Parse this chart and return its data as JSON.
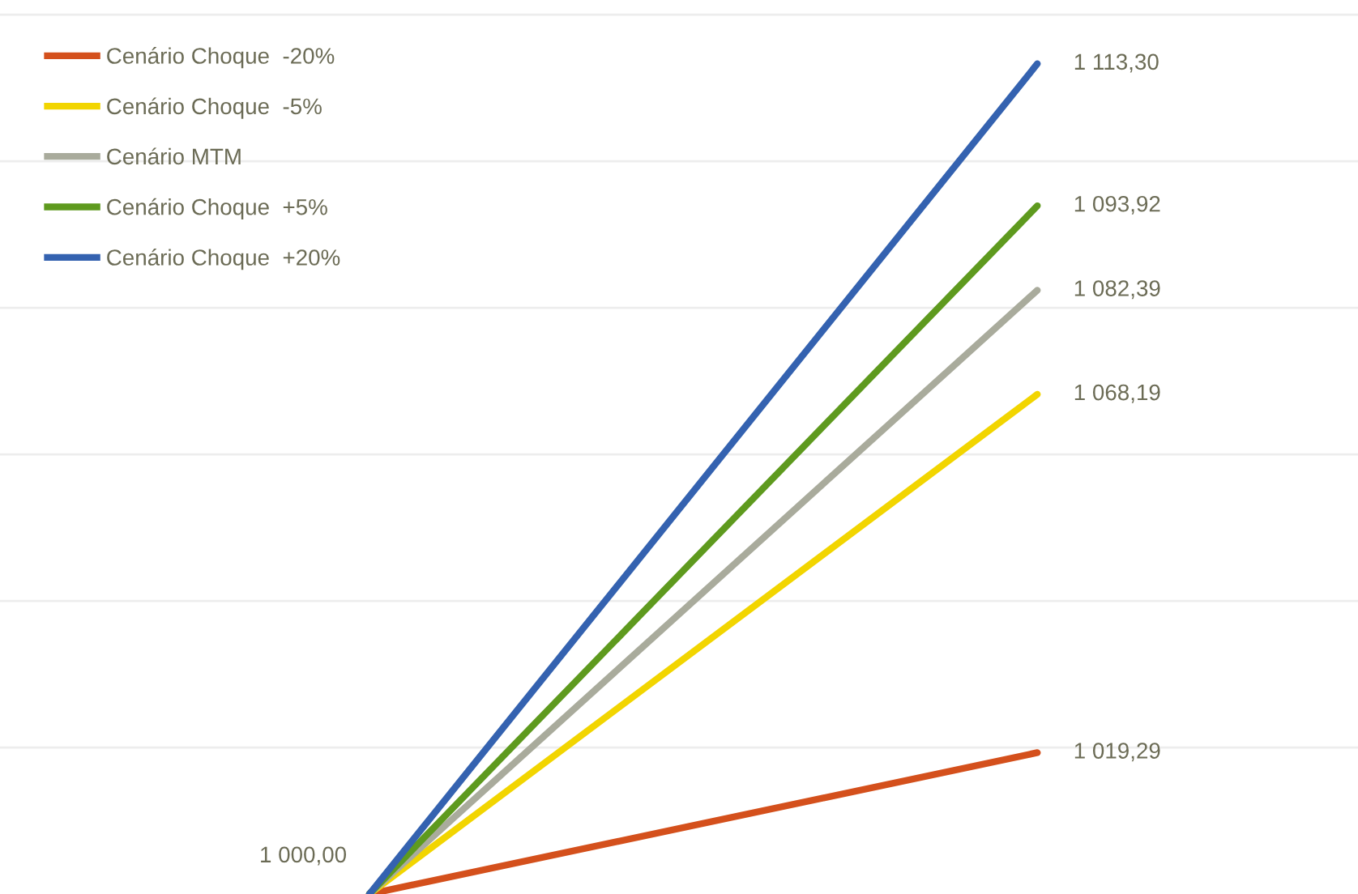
{
  "chart_data": {
    "type": "line",
    "categories": [
      null,
      null
    ],
    "series": [
      {
        "name": "Cenário Choque  -20%",
        "color": "#d4501c",
        "values": [
          1000,
          1019.29
        ],
        "value_labels": [
          null,
          "1 019,29"
        ]
      },
      {
        "name": "Cenário Choque  -5%",
        "color": "#f2d500",
        "values": [
          1000,
          1068.19
        ],
        "value_labels": [
          null,
          "1 068,19"
        ]
      },
      {
        "name": "Cenário MTM",
        "color": "#a9ab9c",
        "values": [
          1000,
          1082.39
        ],
        "value_labels": [
          null,
          "1 082,39"
        ]
      },
      {
        "name": "Cenário Choque  +5%",
        "color": "#5e9a1e",
        "values": [
          1000,
          1093.92
        ],
        "value_labels": [
          null,
          "1 093,92"
        ]
      },
      {
        "name": "Cenário Choque  +20%",
        "color": "#3462b0",
        "values": [
          1000,
          1113.3
        ],
        "value_labels": [
          "1 000,00",
          "1 113,30"
        ]
      }
    ],
    "ylim": [
      1000,
      1122
    ],
    "yticks": [
      {
        "value": 1020,
        "label": null
      },
      {
        "value": 1040,
        "label": null
      },
      {
        "value": 1060,
        "label": null
      },
      {
        "value": 1080,
        "label": null
      },
      {
        "value": 1100,
        "label": null
      },
      {
        "value": 1120,
        "label": null
      }
    ],
    "grid": "y",
    "legend": "top left",
    "marker": "none",
    "line_style": "solid"
  }
}
